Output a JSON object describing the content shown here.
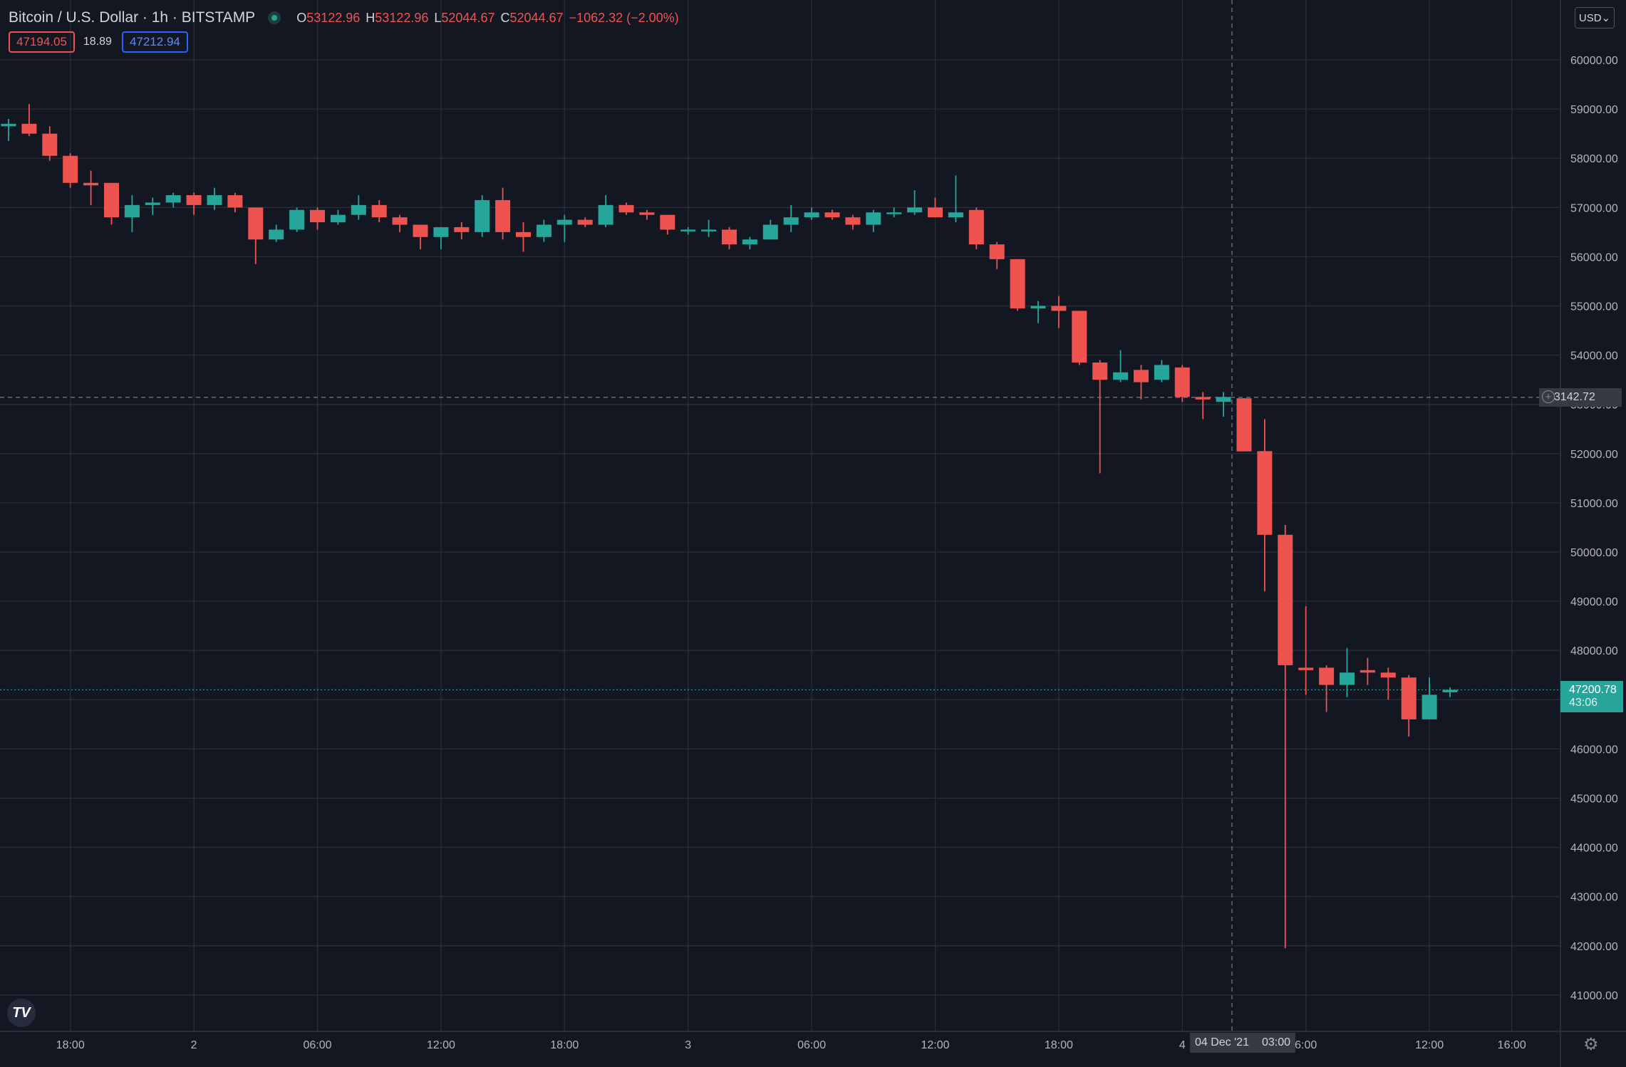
{
  "header": {
    "symbol": "Bitcoin / U.S. Dollar · 1h · BITSTAMP",
    "open_key": "O",
    "open": "53122.96",
    "high_key": "H",
    "high": "53122.96",
    "low_key": "L",
    "low": "52044.67",
    "close_key": "C",
    "close": "52044.67",
    "change": "−1062.32 (−2.00%)"
  },
  "quotes": {
    "bid": "47194.05",
    "spread": "18.89",
    "ask": "47212.94"
  },
  "currency_button": "USD⌄",
  "crosshair": {
    "price": "53142.72",
    "time": "04 Dec '21",
    "time2": "03:00"
  },
  "last_price": {
    "value": "47200.78",
    "countdown": "43:06"
  },
  "colors": {
    "up": "#26a69a",
    "down": "#ef5350",
    "background": "#131722",
    "grid": "#2a2e39"
  },
  "icons": [
    "tradingview-logo-icon",
    "gear-icon",
    "plus-circle-icon",
    "chevron-down-icon"
  ],
  "chart_data": {
    "type": "candlestick",
    "title": "Bitcoin / U.S. Dollar",
    "interval": "1h",
    "exchange": "BITSTAMP",
    "ylim": [
      40000,
      61000
    ],
    "y_ticks": [
      "41000.00",
      "42000.00",
      "43000.00",
      "44000.00",
      "45000.00",
      "46000.00",
      "47000.00",
      "48000.00",
      "49000.00",
      "50000.00",
      "51000.00",
      "52000.00",
      "53000.00",
      "54000.00",
      "55000.00",
      "56000.00",
      "57000.00",
      "58000.00",
      "59000.00",
      "60000.00"
    ],
    "x_ticks": [
      {
        "label": "18:00",
        "hour": 3
      },
      {
        "label": "2",
        "hour": 9
      },
      {
        "label": "06:00",
        "hour": 15
      },
      {
        "label": "12:00",
        "hour": 21
      },
      {
        "label": "18:00",
        "hour": 27
      },
      {
        "label": "3",
        "hour": 33
      },
      {
        "label": "06:00",
        "hour": 39
      },
      {
        "label": "12:00",
        "hour": 45
      },
      {
        "label": "18:00",
        "hour": 51
      },
      {
        "label": "4",
        "hour": 57
      },
      {
        "label": "6:00",
        "hour": 63
      },
      {
        "label": "12:00",
        "hour": 69
      },
      {
        "label": "16:00",
        "hour": 73
      }
    ],
    "grid": true,
    "candles": [
      {
        "o": 58650,
        "h": 58800,
        "l": 58350,
        "c": 58700
      },
      {
        "o": 58700,
        "h": 59100,
        "l": 58450,
        "c": 58500
      },
      {
        "o": 58500,
        "h": 58650,
        "l": 57950,
        "c": 58050
      },
      {
        "o": 58050,
        "h": 58100,
        "l": 57400,
        "c": 57500
      },
      {
        "o": 57500,
        "h": 57750,
        "l": 57050,
        "c": 57450
      },
      {
        "o": 57500,
        "h": 57500,
        "l": 56650,
        "c": 56800
      },
      {
        "o": 56800,
        "h": 57250,
        "l": 56500,
        "c": 57050
      },
      {
        "o": 57050,
        "h": 57200,
        "l": 56850,
        "c": 57100
      },
      {
        "o": 57100,
        "h": 57300,
        "l": 57000,
        "c": 57250
      },
      {
        "o": 57250,
        "h": 57300,
        "l": 56850,
        "c": 57050
      },
      {
        "o": 57050,
        "h": 57400,
        "l": 56950,
        "c": 57250
      },
      {
        "o": 57250,
        "h": 57300,
        "l": 56900,
        "c": 57000
      },
      {
        "o": 57000,
        "h": 57000,
        "l": 55850,
        "c": 56350
      },
      {
        "o": 56350,
        "h": 56650,
        "l": 56300,
        "c": 56550
      },
      {
        "o": 56550,
        "h": 57000,
        "l": 56500,
        "c": 56950
      },
      {
        "o": 56950,
        "h": 57000,
        "l": 56550,
        "c": 56700
      },
      {
        "o": 56700,
        "h": 56950,
        "l": 56650,
        "c": 56850
      },
      {
        "o": 56850,
        "h": 57250,
        "l": 56750,
        "c": 57050
      },
      {
        "o": 57050,
        "h": 57150,
        "l": 56700,
        "c": 56800
      },
      {
        "o": 56800,
        "h": 56850,
        "l": 56500,
        "c": 56650
      },
      {
        "o": 56650,
        "h": 56650,
        "l": 56150,
        "c": 56400
      },
      {
        "o": 56400,
        "h": 56600,
        "l": 56150,
        "c": 56600
      },
      {
        "o": 56600,
        "h": 56700,
        "l": 56350,
        "c": 56500
      },
      {
        "o": 56500,
        "h": 57250,
        "l": 56400,
        "c": 57150
      },
      {
        "o": 57150,
        "h": 57400,
        "l": 56350,
        "c": 56500
      },
      {
        "o": 56500,
        "h": 56700,
        "l": 56100,
        "c": 56400
      },
      {
        "o": 56400,
        "h": 56750,
        "l": 56300,
        "c": 56650
      },
      {
        "o": 56650,
        "h": 56850,
        "l": 56300,
        "c": 56750
      },
      {
        "o": 56750,
        "h": 56800,
        "l": 56600,
        "c": 56650
      },
      {
        "o": 56650,
        "h": 57250,
        "l": 56600,
        "c": 57050
      },
      {
        "o": 57050,
        "h": 57100,
        "l": 56850,
        "c": 56900
      },
      {
        "o": 56900,
        "h": 56950,
        "l": 56750,
        "c": 56850
      },
      {
        "o": 56850,
        "h": 56850,
        "l": 56450,
        "c": 56550
      },
      {
        "o": 56550,
        "h": 56600,
        "l": 56450,
        "c": 56550
      },
      {
        "o": 56550,
        "h": 56750,
        "l": 56400,
        "c": 56550
      },
      {
        "o": 56550,
        "h": 56600,
        "l": 56150,
        "c": 56250
      },
      {
        "o": 56250,
        "h": 56400,
        "l": 56150,
        "c": 56350
      },
      {
        "o": 56350,
        "h": 56750,
        "l": 56350,
        "c": 56650
      },
      {
        "o": 56650,
        "h": 57050,
        "l": 56500,
        "c": 56800
      },
      {
        "o": 56800,
        "h": 57000,
        "l": 56750,
        "c": 56900
      },
      {
        "o": 56900,
        "h": 56950,
        "l": 56750,
        "c": 56800
      },
      {
        "o": 56800,
        "h": 56850,
        "l": 56550,
        "c": 56650
      },
      {
        "o": 56650,
        "h": 56950,
        "l": 56500,
        "c": 56900
      },
      {
        "o": 56900,
        "h": 57000,
        "l": 56800,
        "c": 56900
      },
      {
        "o": 56900,
        "h": 57350,
        "l": 56850,
        "c": 57000
      },
      {
        "o": 57000,
        "h": 57200,
        "l": 56900,
        "c": 56800
      },
      {
        "o": 56800,
        "h": 57650,
        "l": 56700,
        "c": 56900
      },
      {
        "o": 56950,
        "h": 57000,
        "l": 56150,
        "c": 56250
      },
      {
        "o": 56250,
        "h": 56300,
        "l": 55750,
        "c": 55950
      },
      {
        "o": 55950,
        "h": 55950,
        "l": 54900,
        "c": 54950
      },
      {
        "o": 54950,
        "h": 55100,
        "l": 54650,
        "c": 55000
      },
      {
        "o": 55000,
        "h": 55200,
        "l": 54550,
        "c": 54900
      },
      {
        "o": 54900,
        "h": 54900,
        "l": 53800,
        "c": 53850
      },
      {
        "o": 53850,
        "h": 53900,
        "l": 51600,
        "c": 53500
      },
      {
        "o": 53500,
        "h": 54100,
        "l": 53450,
        "c": 53650
      },
      {
        "o": 53700,
        "h": 53800,
        "l": 53100,
        "c": 53450
      },
      {
        "o": 53500,
        "h": 53900,
        "l": 53450,
        "c": 53800
      },
      {
        "o": 53750,
        "h": 53800,
        "l": 53050,
        "c": 53150
      },
      {
        "o": 53150,
        "h": 53250,
        "l": 52700,
        "c": 53100
      },
      {
        "o": 53050,
        "h": 53250,
        "l": 52750,
        "c": 53150
      },
      {
        "o": 53122.96,
        "h": 53122.96,
        "l": 52044.67,
        "c": 52044.67
      },
      {
        "o": 52050,
        "h": 52700,
        "l": 49200,
        "c": 50350
      },
      {
        "o": 50350,
        "h": 50550,
        "l": 41950,
        "c": 47700
      },
      {
        "o": 47650,
        "h": 48900,
        "l": 47100,
        "c": 47600
      },
      {
        "o": 47650,
        "h": 47700,
        "l": 46750,
        "c": 47300
      },
      {
        "o": 47300,
        "h": 48050,
        "l": 47050,
        "c": 47550
      },
      {
        "o": 47600,
        "h": 47850,
        "l": 47300,
        "c": 47550
      },
      {
        "o": 47550,
        "h": 47650,
        "l": 47000,
        "c": 47450
      },
      {
        "o": 47450,
        "h": 47500,
        "l": 46250,
        "c": 46600
      },
      {
        "o": 46600,
        "h": 47450,
        "l": 46600,
        "c": 47100
      },
      {
        "o": 47150,
        "h": 47250,
        "l": 47050,
        "c": 47200.78
      }
    ]
  }
}
